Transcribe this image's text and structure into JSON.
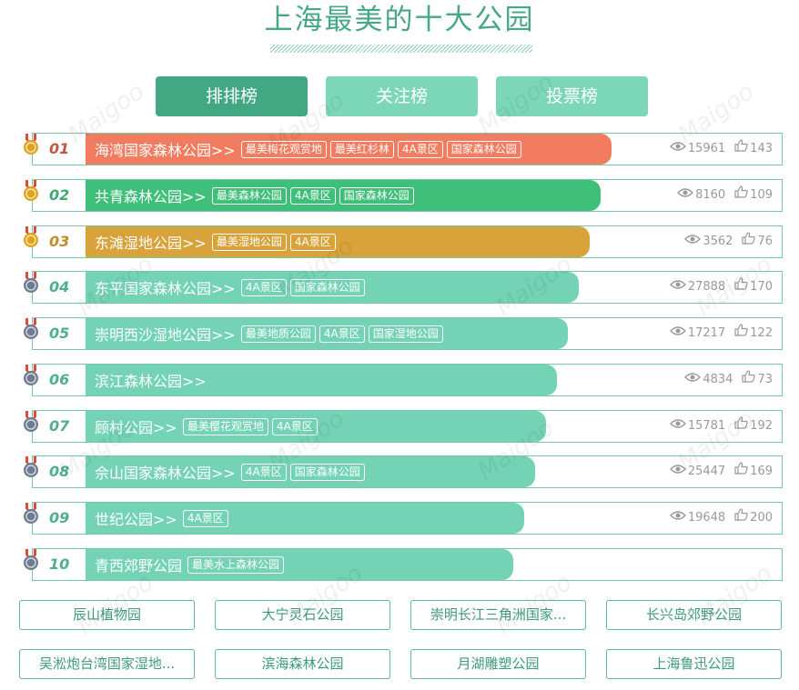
{
  "title": "上海最美的十大公园",
  "tabs": [
    {
      "label": "排排榜",
      "active": true
    },
    {
      "label": "关注榜",
      "active": false
    },
    {
      "label": "投票榜",
      "active": false
    }
  ],
  "medal_colors": {
    "gold": "#e0a41c",
    "silver": "#6e7c91"
  },
  "rows": [
    {
      "rank": "01",
      "name": "海湾国家森林公园>>",
      "tags": [
        "最美梅花观赏地",
        "最美红杉林",
        "4A景区",
        "国家森林公园"
      ],
      "views": "15961",
      "likes": "143",
      "color": "#f17c5f",
      "medal": "gold",
      "rankColor": "#c2573f"
    },
    {
      "rank": "02",
      "name": "共青森林公园>>",
      "tags": [
        "最美森林公园",
        "4A景区",
        "国家森林公园"
      ],
      "views": "8160",
      "likes": "109",
      "color": "#3fbf79",
      "medal": "gold",
      "rankColor": "#41a870"
    },
    {
      "rank": "03",
      "name": "东滩湿地公园>>",
      "tags": [
        "最美湿地公园",
        "4A景区"
      ],
      "views": "3562",
      "likes": "76",
      "color": "#d7a33a",
      "medal": "gold",
      "rankColor": "#c08c2c"
    },
    {
      "rank": "04",
      "name": "东平国家森林公园>>",
      "tags": [
        "4A景区",
        "国家森林公园"
      ],
      "views": "27888",
      "likes": "170",
      "color": "#74d3b4",
      "medal": "silver",
      "rankColor": "#4fae90"
    },
    {
      "rank": "05",
      "name": "崇明西沙湿地公园>>",
      "tags": [
        "最美地质公园",
        "4A景区",
        "国家湿地公园"
      ],
      "views": "17217",
      "likes": "122",
      "color": "#74d3b4",
      "medal": "silver",
      "rankColor": "#4fae90"
    },
    {
      "rank": "06",
      "name": "滨江森林公园>>",
      "tags": [],
      "views": "4834",
      "likes": "73",
      "color": "#74d3b4",
      "medal": "silver",
      "rankColor": "#4fae90"
    },
    {
      "rank": "07",
      "name": "顾村公园>>",
      "tags": [
        "最美樱花观赏地",
        "4A景区"
      ],
      "views": "15781",
      "likes": "192",
      "color": "#74d3b4",
      "medal": "silver",
      "rankColor": "#4fae90"
    },
    {
      "rank": "08",
      "name": "佘山国家森林公园>>",
      "tags": [
        "4A景区",
        "国家森林公园"
      ],
      "views": "25447",
      "likes": "169",
      "color": "#74d3b4",
      "medal": "silver",
      "rankColor": "#4fae90"
    },
    {
      "rank": "09",
      "name": "世纪公园>>",
      "tags": [
        "4A景区"
      ],
      "views": "19648",
      "likes": "200",
      "color": "#74d3b4",
      "medal": "silver",
      "rankColor": "#4fae90"
    },
    {
      "rank": "10",
      "name": "青西郊野公园",
      "tags": [
        "最美水上森林公园"
      ],
      "views": "",
      "likes": "",
      "color": "#74d3b4",
      "medal": "silver",
      "rankColor": "#4fae90"
    }
  ],
  "more_parks": [
    "辰山植物园",
    "大宁灵石公园",
    "崇明长江三角洲国家...",
    "长兴岛郊野公园",
    "吴淞炮台湾国家湿地...",
    "滨海森林公园",
    "月湖雕塑公园",
    "上海鲁迅公园"
  ],
  "watermark": "Maigoo"
}
